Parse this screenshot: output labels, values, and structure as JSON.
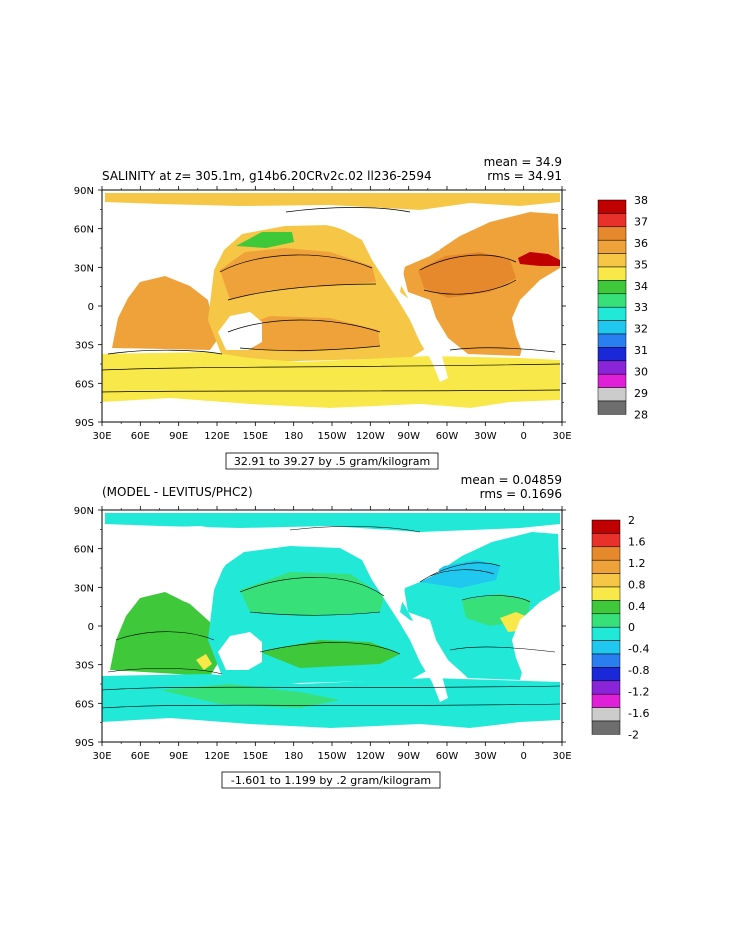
{
  "panels": [
    {
      "title": "SALINITY at z= 305.1m, g14b6.20CRv2c.02  ll236-2594",
      "mean_text": "mean = 34.9",
      "rms_text": "rms = 34.91",
      "range_text": "32.91 to 39.27 by .5 gram/kilogram",
      "legend_labels": [
        "38",
        "37",
        "36",
        "35",
        "34",
        "33",
        "32",
        "31",
        "30",
        "29",
        "28"
      ],
      "legend_colors": [
        "#c00000",
        "#e8312a",
        "#e6892c",
        "#f0a23a",
        "#f6c646",
        "#f8e84a",
        "#3ec83a",
        "#38e07a",
        "#22e8d8",
        "#20c8f0",
        "#2a7ff0",
        "#1a28d8",
        "#8a24d8",
        "#e020d8",
        "#cccccc",
        "#6e6e6e"
      ]
    },
    {
      "title": "(MODEL - LEVITUS/PHC2)",
      "mean_text": "mean = 0.04859",
      "rms_text": "rms = 0.1696",
      "range_text": "-1.601 to 1.199 by .2 gram/kilogram",
      "legend_labels": [
        "2",
        "1.6",
        "1.2",
        "0.8",
        "0.4",
        "0",
        "-0.4",
        "-0.8",
        "-1.2",
        "-1.6",
        "-2"
      ],
      "legend_colors": [
        "#c00000",
        "#e8312a",
        "#e6892c",
        "#f0a23a",
        "#f6c646",
        "#f8e84a",
        "#3ec83a",
        "#38e07a",
        "#22e8d8",
        "#20c8f0",
        "#2a7ff0",
        "#1a28d8",
        "#8a24d8",
        "#e020d8",
        "#cccccc",
        "#6e6e6e"
      ]
    }
  ],
  "axes": {
    "lat_labels": [
      "90N",
      "60N",
      "30N",
      "0",
      "30S",
      "60S",
      "90S"
    ],
    "lon_labels": [
      "30E",
      "60E",
      "90E",
      "120E",
      "150E",
      "180",
      "150W",
      "120W",
      "90W",
      "60W",
      "30W",
      "0",
      "30E"
    ]
  },
  "colors": {
    "map1_base": "#f6c646",
    "map1_south": "#f8e84a",
    "map1_warm": "#f0a23a",
    "map1_atl": "#e6892c",
    "map1_high": "#c00000",
    "map1_fresh": "#3ec83a",
    "map2_base": "#22e8d8",
    "map2_green": "#3ec83a",
    "map2_lgreen": "#38e07a",
    "map2_yellow": "#f8e84a",
    "map2_blue": "#20c8f0"
  }
}
